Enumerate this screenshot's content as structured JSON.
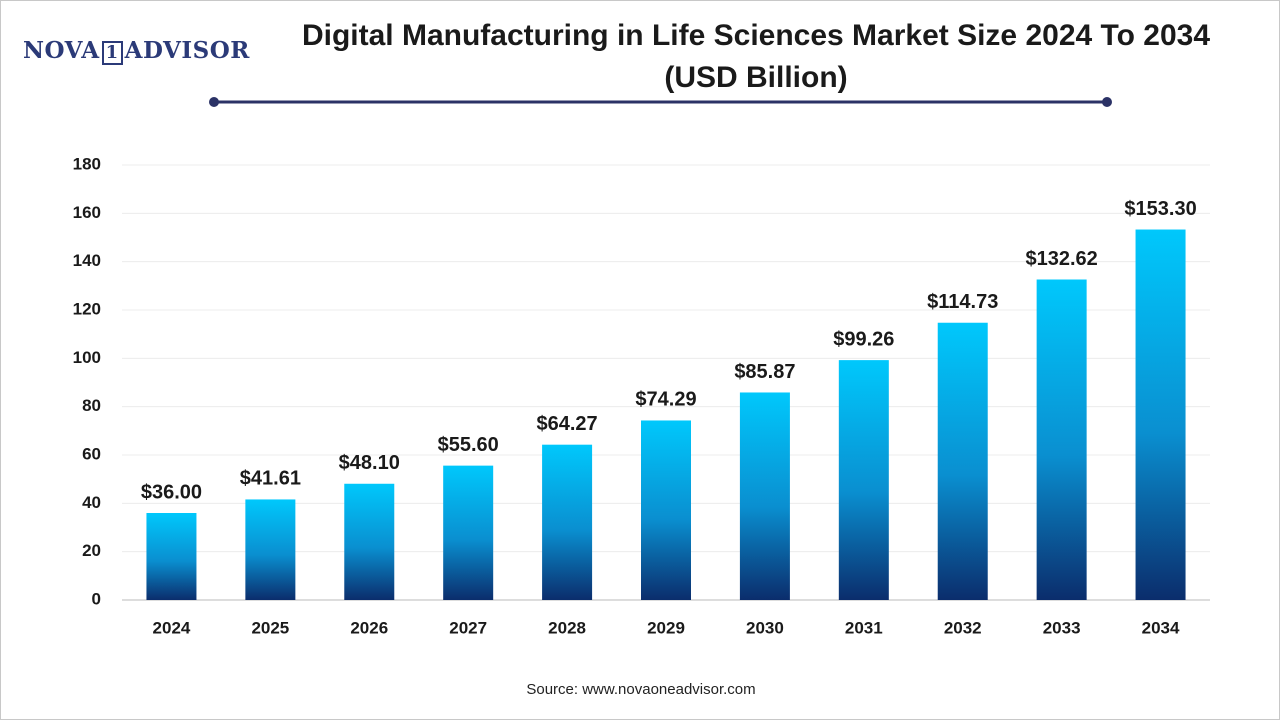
{
  "brand": {
    "left": "NOVA",
    "mark": "1",
    "right": "ADVISOR"
  },
  "chart_data": {
    "type": "bar",
    "title": "Digital Manufacturing in Life Sciences Market Size 2024 To 2034 (USD Billion)",
    "categories": [
      "2024",
      "2025",
      "2026",
      "2027",
      "2028",
      "2029",
      "2030",
      "2031",
      "2032",
      "2033",
      "2034"
    ],
    "values": [
      36.0,
      41.61,
      48.1,
      55.6,
      64.27,
      74.29,
      85.87,
      99.26,
      114.73,
      132.62,
      153.3
    ],
    "value_labels": [
      "$36.00",
      "$41.61",
      "$48.10",
      "$55.60",
      "$64.27",
      "$74.29",
      "$85.87",
      "$99.26",
      "$114.73",
      "$132.62",
      "$153.30"
    ],
    "color": [
      "#00c8fc",
      "#0b2d6c"
    ],
    "ylim": [
      0,
      180
    ],
    "yticks": [
      0,
      20,
      40,
      60,
      80,
      100,
      120,
      140,
      160,
      180
    ],
    "grid": true,
    "source": "Source: www.novaoneadvisor.com"
  }
}
